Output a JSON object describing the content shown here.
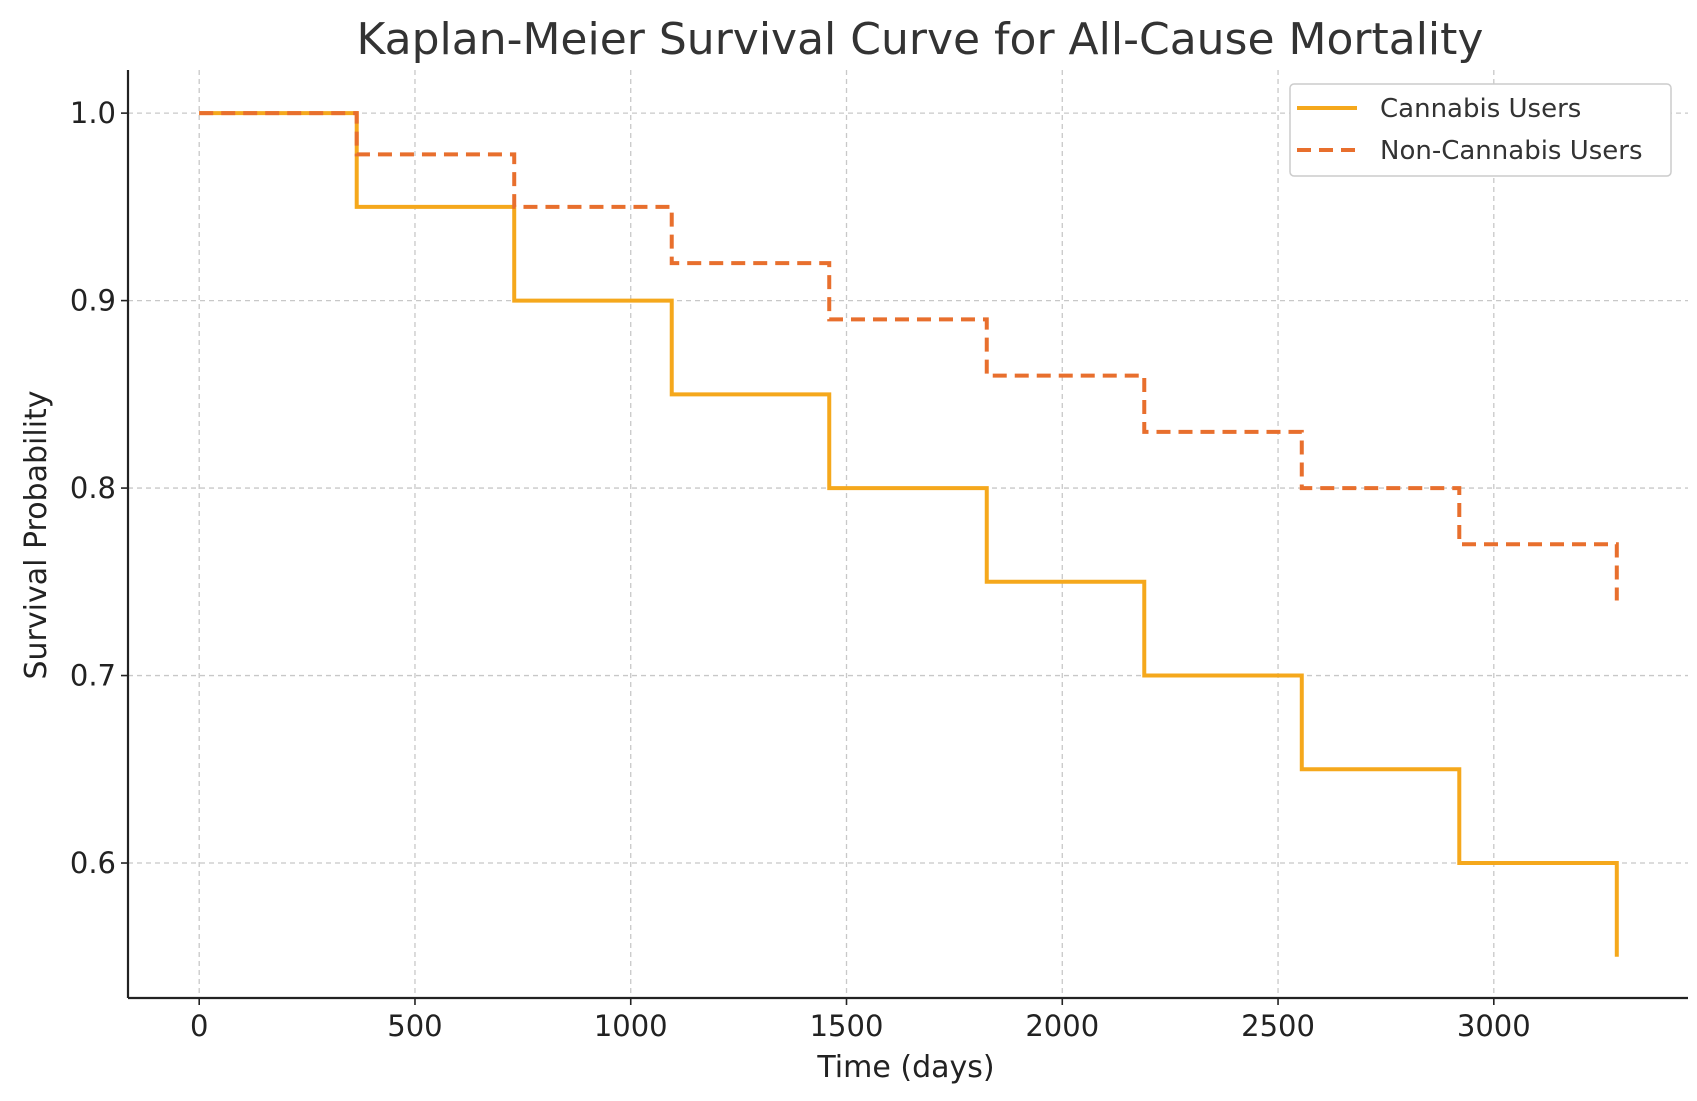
{
  "chart_data": {
    "type": "line",
    "step": true,
    "title": "Kaplan-Meier Survival Curve for All-Cause Mortality",
    "xlabel": "Time (days)",
    "ylabel": "Survival Probability",
    "xlim": [
      -165,
      3450
    ],
    "ylim": [
      0.528,
      1.023
    ],
    "xticks": [
      0,
      500,
      1000,
      1500,
      2000,
      2500,
      3000
    ],
    "yticks": [
      0.6,
      0.7,
      0.8,
      0.9,
      1.0
    ],
    "xtick_labels": [
      "0",
      "500",
      "1000",
      "1500",
      "2000",
      "2500",
      "3000"
    ],
    "ytick_labels": [
      "0.6",
      "0.7",
      "0.8",
      "0.9",
      "1.0"
    ],
    "grid": true,
    "legend_position": "top-right",
    "series": [
      {
        "name": "Cannabis Users",
        "color": "#F5A81C",
        "style": "solid",
        "x": [
          0,
          365,
          730,
          1095,
          1460,
          1825,
          2190,
          2555,
          2920,
          3285
        ],
        "y": [
          1.0,
          0.95,
          0.9,
          0.85,
          0.8,
          0.75,
          0.7,
          0.65,
          0.6,
          0.55
        ]
      },
      {
        "name": "Non-Cannabis Users",
        "color": "#E86F2D",
        "style": "dashed",
        "x": [
          0,
          365,
          730,
          1095,
          1460,
          1825,
          2190,
          2555,
          2920,
          3285
        ],
        "y": [
          1.0,
          0.978,
          0.95,
          0.92,
          0.89,
          0.86,
          0.83,
          0.8,
          0.77,
          0.74
        ]
      }
    ]
  }
}
